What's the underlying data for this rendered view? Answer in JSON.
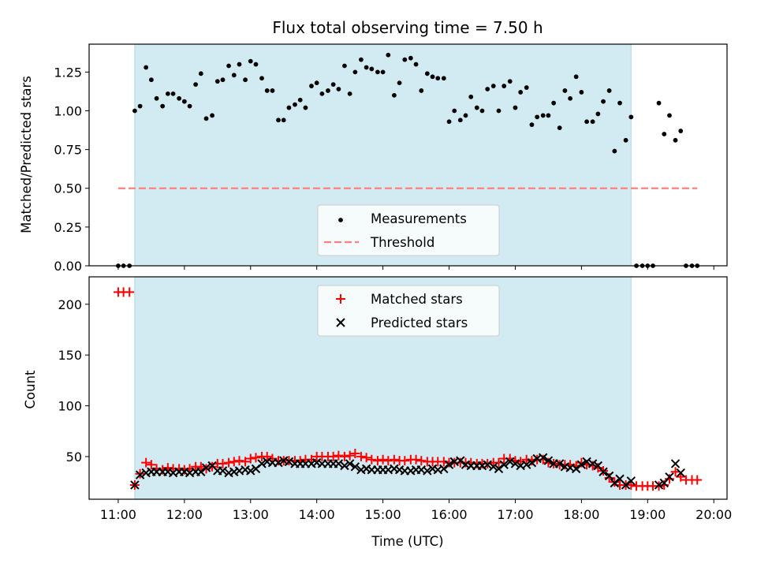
{
  "chart_data": {
    "type": "scatter",
    "title": "Flux total observing time = 7.50 h",
    "xlabel": "Time (UTC)",
    "x_ticks": [
      "11:00",
      "12:00",
      "13:00",
      "14:00",
      "15:00",
      "16:00",
      "17:00",
      "18:00",
      "19:00",
      "20:00"
    ],
    "x_range_hours": [
      10.56,
      20.2
    ],
    "shaded_window_hours": [
      11.25,
      18.75
    ],
    "shade_color": "#add8e6",
    "panels": [
      {
        "ylabel": "Matched/Predicted stars",
        "ylim": [
          0,
          1.43
        ],
        "y_ticks": [
          "0.00",
          "0.25",
          "0.50",
          "0.75",
          "1.00",
          "1.25"
        ],
        "legend_position": "lower-center",
        "series": [
          {
            "name": "Measurements",
            "marker": "dot",
            "color": "#000000",
            "x": [
              11.0,
              11.08,
              11.17,
              11.25,
              11.33,
              11.42,
              11.5,
              11.58,
              11.67,
              11.75,
              11.83,
              11.92,
              12.0,
              12.08,
              12.17,
              12.25,
              12.33,
              12.42,
              12.5,
              12.58,
              12.67,
              12.75,
              12.83,
              12.92,
              13.0,
              13.08,
              13.17,
              13.25,
              13.33,
              13.42,
              13.5,
              13.58,
              13.67,
              13.75,
              13.83,
              13.92,
              14.0,
              14.08,
              14.17,
              14.25,
              14.33,
              14.42,
              14.5,
              14.58,
              14.67,
              14.75,
              14.83,
              14.92,
              15.0,
              15.08,
              15.17,
              15.25,
              15.33,
              15.42,
              15.5,
              15.58,
              15.67,
              15.75,
              15.83,
              15.92,
              16.0,
              16.08,
              16.17,
              16.25,
              16.33,
              16.42,
              16.5,
              16.58,
              16.67,
              16.75,
              16.83,
              16.92,
              17.0,
              17.08,
              17.17,
              17.25,
              17.33,
              17.42,
              17.5,
              17.58,
              17.67,
              17.75,
              17.83,
              17.92,
              18.0,
              18.08,
              18.17,
              18.25,
              18.33,
              18.42,
              18.5,
              18.58,
              18.67,
              18.75,
              18.83,
              18.92,
              19.0,
              19.08,
              19.17,
              19.25,
              19.33,
              19.42,
              19.5,
              19.58,
              19.67,
              19.75
            ],
            "y": [
              0.0,
              0.0,
              0.0,
              1.0,
              1.03,
              1.28,
              1.2,
              1.08,
              1.03,
              1.11,
              1.11,
              1.08,
              1.06,
              1.03,
              1.17,
              1.24,
              0.95,
              0.97,
              1.19,
              1.2,
              1.29,
              1.23,
              1.3,
              1.2,
              1.32,
              1.3,
              1.21,
              1.13,
              1.13,
              0.94,
              0.94,
              1.02,
              1.04,
              1.07,
              1.02,
              1.16,
              1.18,
              1.11,
              1.13,
              1.17,
              1.14,
              1.29,
              1.11,
              1.25,
              1.33,
              1.28,
              1.27,
              1.25,
              1.25,
              1.36,
              1.1,
              1.18,
              1.33,
              1.34,
              1.3,
              1.13,
              1.24,
              1.22,
              1.21,
              1.21,
              0.93,
              1.0,
              0.94,
              0.97,
              1.09,
              1.02,
              1.0,
              1.14,
              1.16,
              1.0,
              1.16,
              1.19,
              1.02,
              1.12,
              1.15,
              0.91,
              0.96,
              0.97,
              0.97,
              1.05,
              0.89,
              1.13,
              1.08,
              1.22,
              1.12,
              0.93,
              0.93,
              0.98,
              1.06,
              1.13,
              0.74,
              1.05,
              0.81,
              0.96,
              0.0,
              0.0,
              0.0,
              0.0,
              1.05,
              0.85,
              0.97,
              0.81,
              0.87,
              0.0,
              0.0,
              0.0
            ]
          },
          {
            "name": "Threshold",
            "marker": "dashed-line",
            "color": "#ff7f7f",
            "x": [
              11.0,
              19.75
            ],
            "y": [
              0.5,
              0.5
            ]
          }
        ]
      },
      {
        "ylabel": "Count",
        "ylim": [
          8,
          227
        ],
        "y_ticks": [
          "50",
          "100",
          "150",
          "200"
        ],
        "legend_position": "upper-center",
        "series": [
          {
            "name": "Matched stars",
            "marker": "plus",
            "color": "#ff0000",
            "x": [
              11.0,
              11.08,
              11.17,
              11.25,
              11.33,
              11.42,
              11.5,
              11.58,
              11.67,
              11.75,
              11.83,
              11.92,
              12.0,
              12.08,
              12.17,
              12.25,
              12.33,
              12.42,
              12.5,
              12.58,
              12.67,
              12.75,
              12.83,
              12.92,
              13.0,
              13.08,
              13.17,
              13.25,
              13.33,
              13.42,
              13.5,
              13.58,
              13.67,
              13.75,
              13.83,
              13.92,
              14.0,
              14.08,
              14.17,
              14.25,
              14.33,
              14.42,
              14.5,
              14.58,
              14.67,
              14.75,
              14.83,
              14.92,
              15.0,
              15.08,
              15.17,
              15.25,
              15.33,
              15.42,
              15.5,
              15.58,
              15.67,
              15.75,
              15.83,
              15.92,
              16.0,
              16.08,
              16.17,
              16.25,
              16.33,
              16.42,
              16.5,
              16.58,
              16.67,
              16.75,
              16.83,
              16.92,
              17.0,
              17.08,
              17.17,
              17.25,
              17.33,
              17.42,
              17.5,
              17.58,
              17.67,
              17.75,
              17.83,
              17.92,
              18.0,
              18.08,
              18.17,
              18.25,
              18.33,
              18.42,
              18.5,
              18.58,
              18.67,
              18.75,
              18.83,
              18.92,
              19.0,
              19.08,
              19.17,
              19.25,
              19.33,
              19.42,
              19.5,
              19.58,
              19.67,
              19.75
            ],
            "y": [
              212,
              212,
              212,
              22,
              33,
              44,
              42,
              38,
              37,
              39,
              38,
              38,
              37,
              38,
              40,
              40,
              38,
              40,
              43,
              43,
              44,
              45,
              46,
              45,
              48,
              49,
              50,
              50,
              48,
              46,
              46,
              46,
              46,
              46,
              47,
              47,
              50,
              50,
              50,
              50,
              51,
              50,
              51,
              53,
              50,
              49,
              47,
              46,
              47,
              46,
              47,
              46,
              46,
              47,
              47,
              46,
              45,
              45,
              45,
              45,
              44,
              44,
              44,
              44,
              44,
              43,
              43,
              43,
              44,
              44,
              48,
              48,
              46,
              45,
              47,
              46,
              47,
              47,
              44,
              43,
              42,
              42,
              42,
              41,
              44,
              42,
              41,
              39,
              36,
              29,
              25,
              22,
              22,
              22,
              21,
              21,
              21,
              21,
              21,
              22,
              28,
              35,
              30,
              27,
              27,
              27
            ]
          },
          {
            "name": "Predicted stars",
            "marker": "x",
            "color": "#000000",
            "x": [
              11.25,
              11.33,
              11.42,
              11.5,
              11.58,
              11.67,
              11.75,
              11.83,
              11.92,
              12.0,
              12.08,
              12.17,
              12.25,
              12.33,
              12.42,
              12.5,
              12.58,
              12.67,
              12.75,
              12.83,
              12.92,
              13.0,
              13.08,
              13.17,
              13.25,
              13.33,
              13.42,
              13.5,
              13.58,
              13.67,
              13.75,
              13.83,
              13.92,
              14.0,
              14.08,
              14.17,
              14.25,
              14.33,
              14.42,
              14.5,
              14.58,
              14.67,
              14.75,
              14.83,
              14.92,
              15.0,
              15.08,
              15.17,
              15.25,
              15.33,
              15.42,
              15.5,
              15.58,
              15.67,
              15.75,
              15.83,
              15.92,
              16.0,
              16.08,
              16.17,
              16.25,
              16.33,
              16.42,
              16.5,
              16.58,
              16.67,
              16.75,
              16.83,
              16.92,
              17.0,
              17.08,
              17.17,
              17.25,
              17.33,
              17.42,
              17.5,
              17.58,
              17.67,
              17.75,
              17.83,
              17.92,
              18.0,
              18.08,
              18.17,
              18.25,
              18.33,
              18.42,
              18.5,
              18.58,
              18.67,
              18.75,
              19.17,
              19.25,
              19.33,
              19.42,
              19.5
            ],
            "y": [
              22,
              32,
              34,
              35,
              35,
              35,
              35,
              34,
              35,
              35,
              34,
              35,
              35,
              39,
              41,
              36,
              36,
              34,
              35,
              36,
              37,
              36,
              38,
              43,
              45,
              44,
              44,
              46,
              45,
              43,
              43,
              43,
              43,
              44,
              43,
              43,
              43,
              43,
              41,
              43,
              40,
              37,
              38,
              37,
              37,
              37,
              37,
              38,
              37,
              36,
              36,
              37,
              37,
              36,
              38,
              37,
              38,
              42,
              45,
              46,
              42,
              41,
              41,
              41,
              42,
              40,
              38,
              42,
              45,
              43,
              41,
              42,
              44,
              48,
              49,
              46,
              43,
              43,
              40,
              39,
              38,
              42,
              45,
              43,
              41,
              35,
              31,
              24,
              28,
              22,
              26,
              22,
              24,
              30,
              43,
              34
            ]
          }
        ]
      }
    ]
  }
}
